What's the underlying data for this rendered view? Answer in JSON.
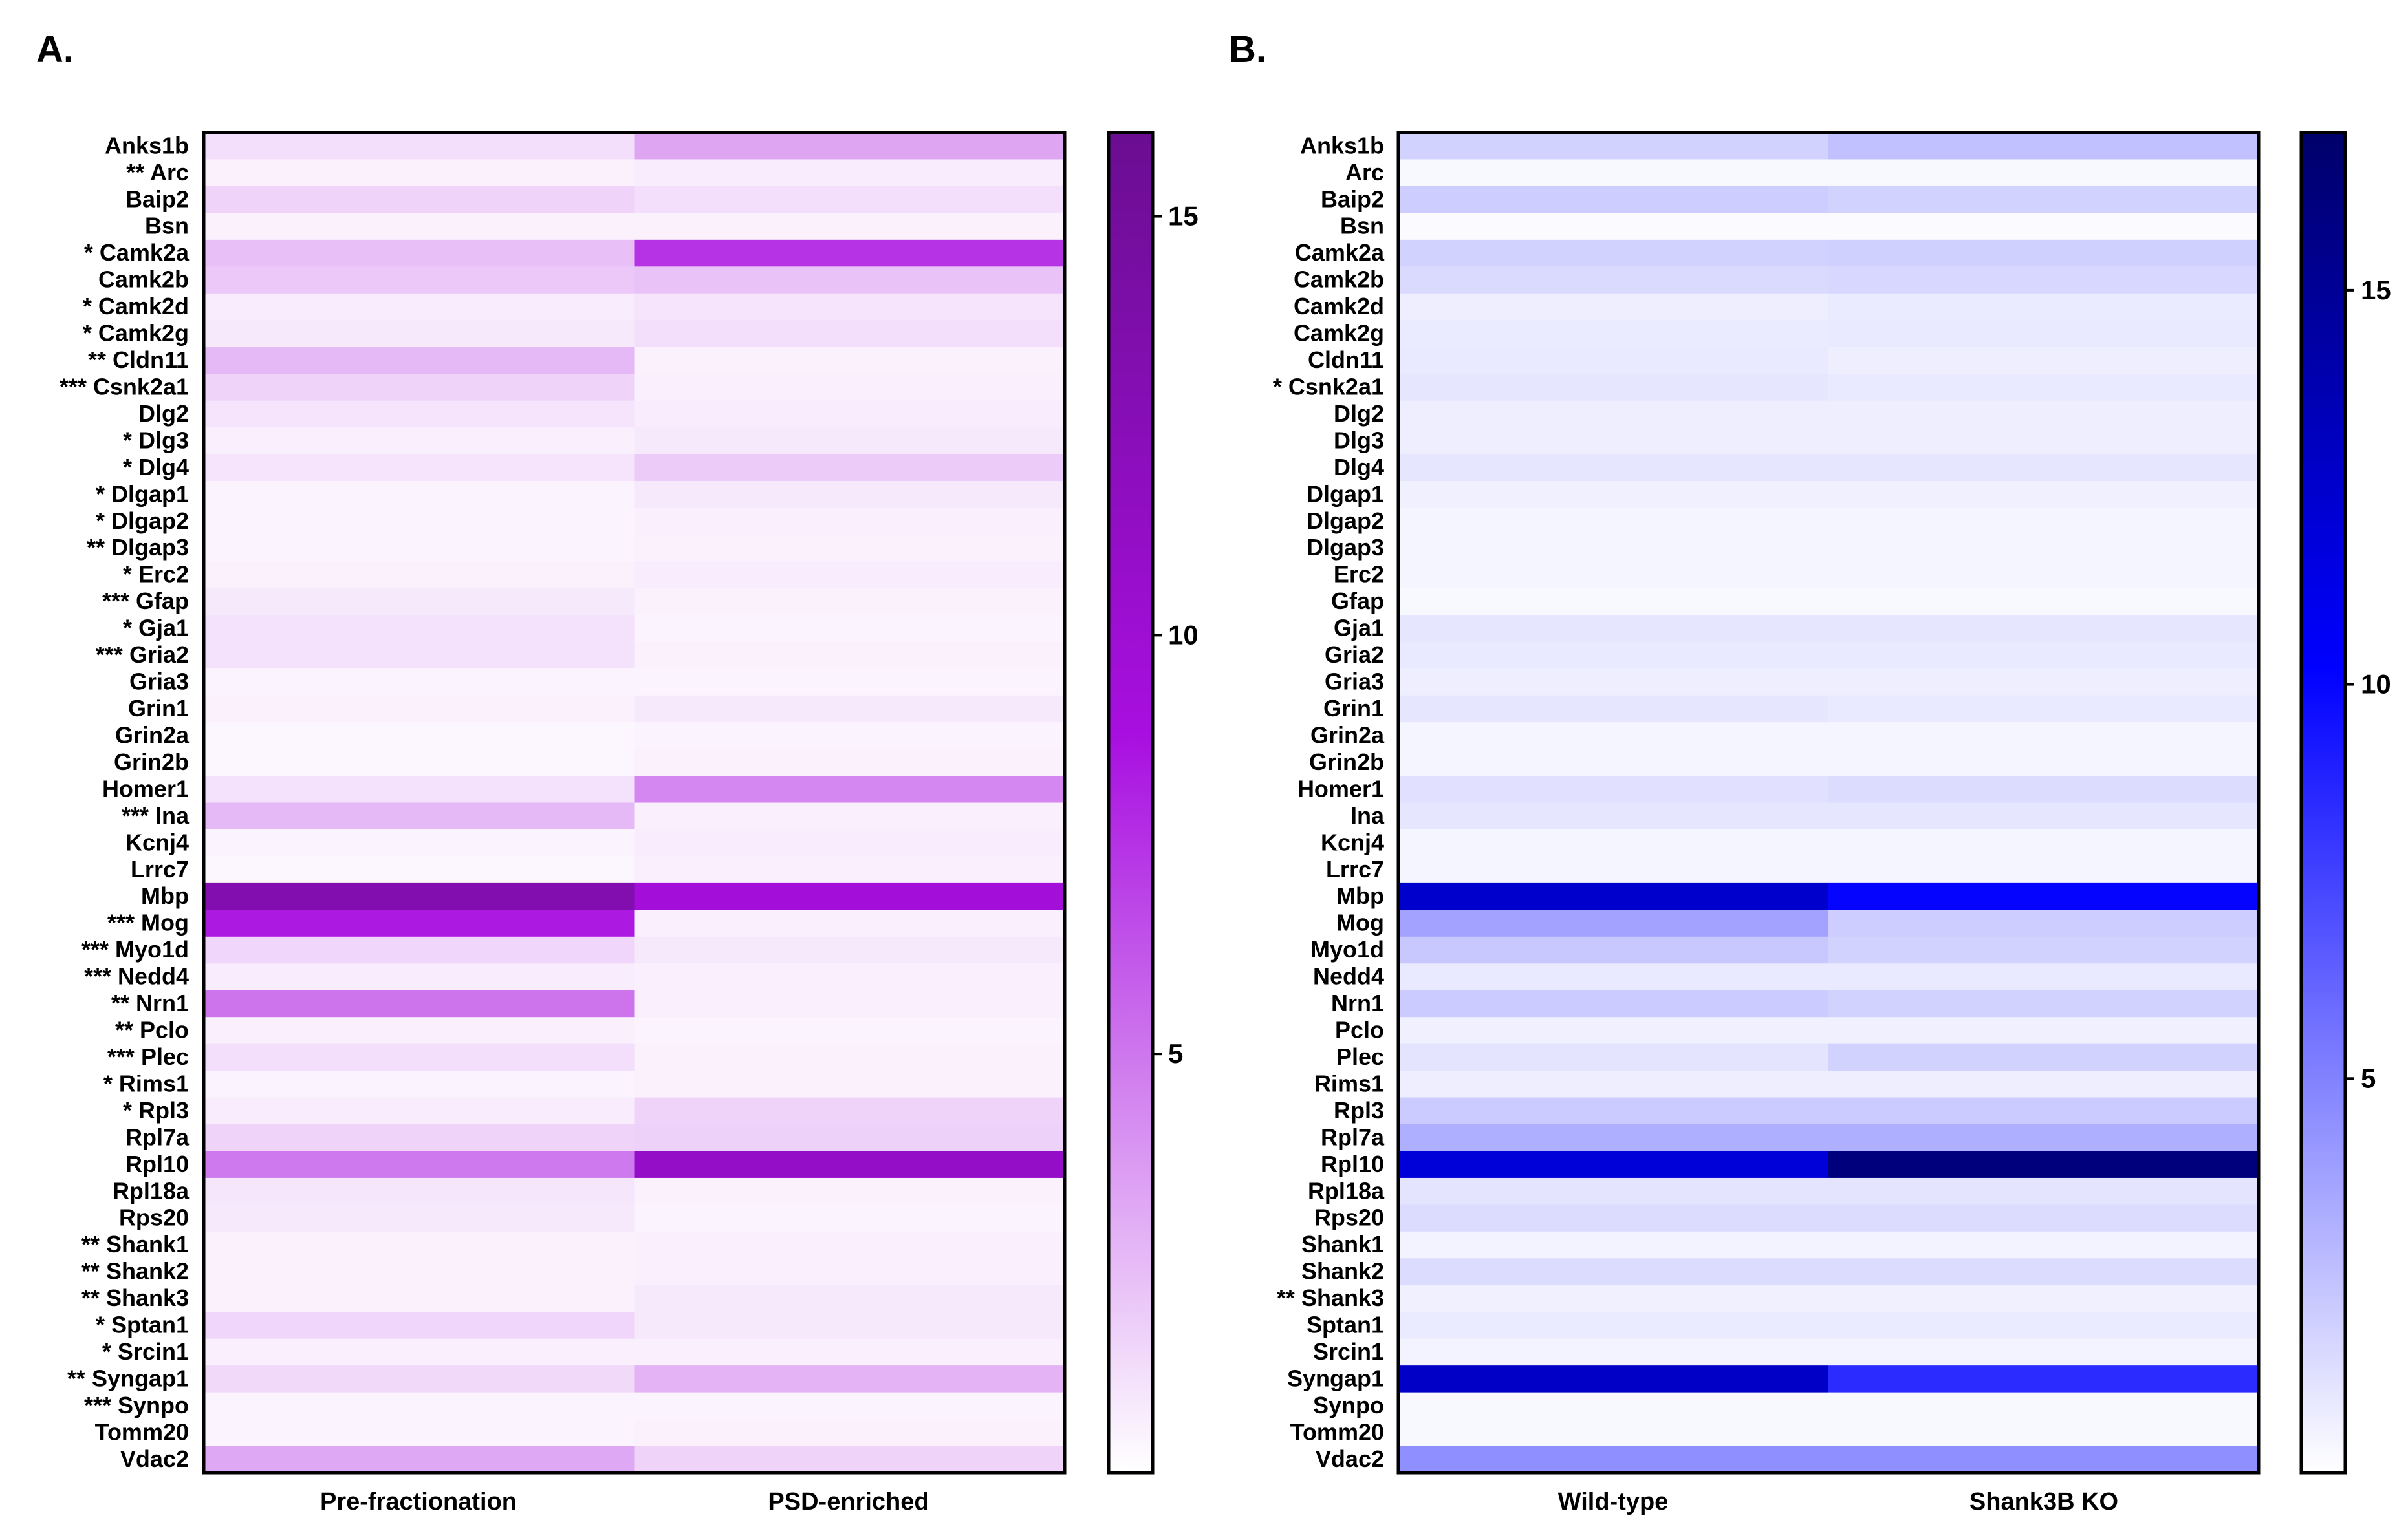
{
  "genes": [
    "Anks1b",
    "Arc",
    "Baip2",
    "Bsn",
    "Camk2a",
    "Camk2b",
    "Camk2d",
    "Camk2g",
    "Cldn11",
    "Csnk2a1",
    "Dlg2",
    "Dlg3",
    "Dlg4",
    "Dlgap1",
    "Dlgap2",
    "Dlgap3",
    "Erc2",
    "Gfap",
    "Gja1",
    "Gria2",
    "Gria3",
    "Grin1",
    "Grin2a",
    "Grin2b",
    "Homer1",
    "Ina",
    "Kcnj4",
    "Lrrc7",
    "Mbp",
    "Mog",
    "Myo1d",
    "Nedd4",
    "Nrn1",
    "Pclo",
    "Plec",
    "Rims1",
    "Rpl3",
    "Rpl7a",
    "Rpl10",
    "Rpl18a",
    "Rps20",
    "Shank1",
    "Shank2",
    "Shank3",
    "Sptan1",
    "Srcin1",
    "Syngap1",
    "Synpo",
    "Tomm20",
    "Vdac2"
  ],
  "chart_data": [
    {
      "type": "heatmap",
      "panel_label": "A.",
      "columns": [
        "Pre-fractionation",
        "PSD-enriched"
      ],
      "row_labels": [
        "Anks1b",
        "** Arc",
        "Baip2",
        "Bsn",
        "* Camk2a",
        "Camk2b",
        "* Camk2d",
        "* Camk2g",
        "** Cldn11",
        "*** Csnk2a1",
        "Dlg2",
        "* Dlg3",
        "* Dlg4",
        "* Dlgap1",
        "* Dlgap2",
        "** Dlgap3",
        "* Erc2",
        "*** Gfap",
        "* Gja1",
        "*** Gria2",
        "Gria3",
        "Grin1",
        "Grin2a",
        "Grin2b",
        "Homer1",
        "*** Ina",
        "Kcnj4",
        "Lrrc7",
        "Mbp",
        "*** Mog",
        "*** Myo1d",
        "*** Nedd4",
        "** Nrn1",
        "** Pclo",
        "*** Plec",
        "* Rims1",
        "* Rpl3",
        "Rpl7a",
        "Rpl10",
        "Rpl18a",
        "Rps20",
        "** Shank1",
        "** Shank2",
        "** Shank3",
        "* Sptan1",
        "* Srcin1",
        "** Syngap1",
        "*** Synpo",
        "Tomm20",
        "Vdac2"
      ],
      "values": [
        [
          1.2,
          3.3
        ],
        [
          0.5,
          0.7
        ],
        [
          1.6,
          1.2
        ],
        [
          0.5,
          0.5
        ],
        [
          2.3,
          7.5
        ],
        [
          2.0,
          2.2
        ],
        [
          0.7,
          1.0
        ],
        [
          0.8,
          1.2
        ],
        [
          2.6,
          0.5
        ],
        [
          1.6,
          0.6
        ],
        [
          1.0,
          0.7
        ],
        [
          0.6,
          0.8
        ],
        [
          1.0,
          1.9
        ],
        [
          0.4,
          0.8
        ],
        [
          0.4,
          0.6
        ],
        [
          0.4,
          0.5
        ],
        [
          0.5,
          0.7
        ],
        [
          0.8,
          0.5
        ],
        [
          1.1,
          0.4
        ],
        [
          1.1,
          0.5
        ],
        [
          0.4,
          0.4
        ],
        [
          0.5,
          0.8
        ],
        [
          0.3,
          0.4
        ],
        [
          0.3,
          0.5
        ],
        [
          1.1,
          4.4
        ],
        [
          2.6,
          0.6
        ],
        [
          0.4,
          0.7
        ],
        [
          0.3,
          0.6
        ],
        [
          13.2,
          9.4
        ],
        [
          8.4,
          0.6
        ],
        [
          1.5,
          0.8
        ],
        [
          0.7,
          0.6
        ],
        [
          5.1,
          0.6
        ],
        [
          0.6,
          0.4
        ],
        [
          1.2,
          0.5
        ],
        [
          0.4,
          0.5
        ],
        [
          0.7,
          1.6
        ],
        [
          1.6,
          1.7
        ],
        [
          4.9,
          11.2
        ],
        [
          0.9,
          0.5
        ],
        [
          0.8,
          0.4
        ],
        [
          0.5,
          0.6
        ],
        [
          0.5,
          0.6
        ],
        [
          0.5,
          0.8
        ],
        [
          1.5,
          0.8
        ],
        [
          0.6,
          0.6
        ],
        [
          1.4,
          2.8
        ],
        [
          0.4,
          0.4
        ],
        [
          0.4,
          0.5
        ],
        [
          3.2,
          1.6
        ]
      ],
      "color_range": [
        0,
        16
      ],
      "colorbar_ticks": [
        5,
        10,
        15
      ],
      "color_low": "#ffffff",
      "color_mid": "#a80fe0",
      "color_high": "#6a0d91"
    },
    {
      "type": "heatmap",
      "panel_label": "B.",
      "columns": [
        "Wild-type",
        "Shank3B KO"
      ],
      "row_labels": [
        "Anks1b",
        "Arc",
        "Baip2",
        "Bsn",
        "Camk2a",
        "Camk2b",
        "Camk2d",
        "Camk2g",
        "Cldn11",
        "* Csnk2a1",
        "Dlg2",
        "Dlg3",
        "Dlg4",
        "Dlgap1",
        "Dlgap2",
        "Dlgap3",
        "Erc2",
        "Gfap",
        "Gja1",
        "Gria2",
        "Gria3",
        "Grin1",
        "Grin2a",
        "Grin2b",
        "Homer1",
        "Ina",
        "Kcnj4",
        "Lrrc7",
        "Mbp",
        "Mog",
        "Myo1d",
        "Nedd4",
        "Nrn1",
        "Pclo",
        "Plec",
        "Rims1",
        "Rpl3",
        "Rpl7a",
        "Rpl10",
        "Rpl18a",
        "Rps20",
        "Shank1",
        "Shank2",
        "** Shank3",
        "Sptan1",
        "Srcin1",
        "Syngap1",
        "Synpo",
        "Tomm20",
        "Vdac2"
      ],
      "values": [
        [
          1.8,
          2.5
        ],
        [
          0.3,
          0.3
        ],
        [
          2.0,
          1.8
        ],
        [
          0.2,
          0.2
        ],
        [
          1.8,
          1.9
        ],
        [
          1.5,
          1.6
        ],
        [
          0.7,
          0.8
        ],
        [
          0.8,
          0.9
        ],
        [
          0.9,
          0.7
        ],
        [
          1.0,
          0.9
        ],
        [
          0.7,
          0.7
        ],
        [
          0.7,
          0.7
        ],
        [
          1.0,
          1.0
        ],
        [
          0.6,
          0.6
        ],
        [
          0.4,
          0.4
        ],
        [
          0.4,
          0.4
        ],
        [
          0.4,
          0.4
        ],
        [
          0.3,
          0.3
        ],
        [
          1.0,
          1.0
        ],
        [
          0.9,
          0.9
        ],
        [
          0.7,
          0.7
        ],
        [
          1.0,
          0.9
        ],
        [
          0.4,
          0.4
        ],
        [
          0.4,
          0.4
        ],
        [
          1.2,
          1.4
        ],
        [
          1.0,
          1.0
        ],
        [
          0.4,
          0.4
        ],
        [
          0.4,
          0.4
        ],
        [
          12.5,
          10.0
        ],
        [
          3.7,
          2.0
        ],
        [
          2.2,
          1.8
        ],
        [
          0.9,
          0.9
        ],
        [
          2.1,
          1.8
        ],
        [
          0.6,
          0.6
        ],
        [
          1.1,
          1.8
        ],
        [
          0.7,
          0.7
        ],
        [
          2.1,
          2.1
        ],
        [
          3.2,
          3.2
        ],
        [
          12.0,
          16.2
        ],
        [
          1.1,
          1.1
        ],
        [
          1.4,
          1.4
        ],
        [
          0.5,
          0.5
        ],
        [
          1.4,
          1.4
        ],
        [
          0.6,
          0.6
        ],
        [
          0.8,
          0.8
        ],
        [
          0.5,
          0.5
        ],
        [
          12.8,
          8.5
        ],
        [
          0.3,
          0.3
        ],
        [
          0.3,
          0.3
        ],
        [
          4.5,
          4.5
        ]
      ],
      "color_range": [
        0,
        17
      ],
      "colorbar_ticks": [
        5,
        10,
        15
      ],
      "color_low": "#ffffff",
      "color_mid": "#0000ff",
      "color_high": "#00006a"
    }
  ]
}
